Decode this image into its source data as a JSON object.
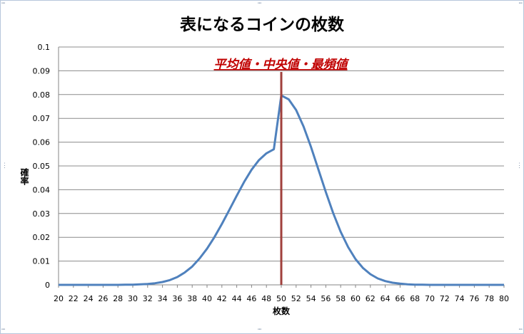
{
  "chart_data": {
    "type": "line",
    "title": "表になるコインの枚数",
    "xlabel": "枚数",
    "ylabel": "確率",
    "xlim": [
      20,
      80
    ],
    "ylim": [
      0,
      0.1
    ],
    "x_ticks": [
      "20",
      "22",
      "24",
      "26",
      "28",
      "30",
      "32",
      "34",
      "36",
      "38",
      "40",
      "42",
      "44",
      "46",
      "48",
      "50",
      "52",
      "54",
      "56",
      "58",
      "60",
      "62",
      "64",
      "66",
      "68",
      "70",
      "72",
      "74",
      "76",
      "78",
      "80"
    ],
    "y_ticks": [
      "0",
      "0.01",
      "0.02",
      "0.03",
      "0.04",
      "0.05",
      "0.06",
      "0.07",
      "0.08",
      "0.09",
      "0.1"
    ],
    "grid": "horizontal",
    "series": [
      {
        "color": "#4f81bd",
        "x": [
          20,
          21,
          22,
          23,
          24,
          25,
          26,
          27,
          28,
          29,
          30,
          31,
          32,
          33,
          34,
          35,
          36,
          37,
          38,
          39,
          40,
          41,
          42,
          43,
          44,
          45,
          46,
          47,
          48,
          49,
          50,
          51,
          52,
          53,
          54,
          55,
          56,
          57,
          58,
          59,
          60,
          61,
          62,
          63,
          64,
          65,
          66,
          67,
          68,
          69,
          70,
          71,
          72,
          73,
          74,
          75,
          76,
          77,
          78,
          79,
          80
        ],
        "values": [
          0,
          0,
          0,
          0,
          0,
          0,
          0.0,
          0.0,
          0.0,
          0.0001,
          0.0001,
          0.0002,
          0.0004,
          0.0007,
          0.0012,
          0.002,
          0.0033,
          0.0052,
          0.0077,
          0.0111,
          0.0152,
          0.0201,
          0.0256,
          0.0315,
          0.0375,
          0.0433,
          0.0484,
          0.0525,
          0.0553,
          0.057,
          0.0796,
          0.078,
          0.0735,
          0.0666,
          0.058,
          0.0485,
          0.039,
          0.0301,
          0.0223,
          0.0159,
          0.0108,
          0.0071,
          0.0045,
          0.0027,
          0.0016,
          0.0009,
          0.0005,
          0.0002,
          0.0001,
          0.0001,
          0,
          0,
          0,
          0,
          0,
          0,
          0,
          0,
          0,
          0,
          0
        ]
      }
    ],
    "vline": {
      "x": 50,
      "color": "#a0403c",
      "label": "平均値・中央値・最頻値",
      "label_color": "#c00000"
    }
  }
}
